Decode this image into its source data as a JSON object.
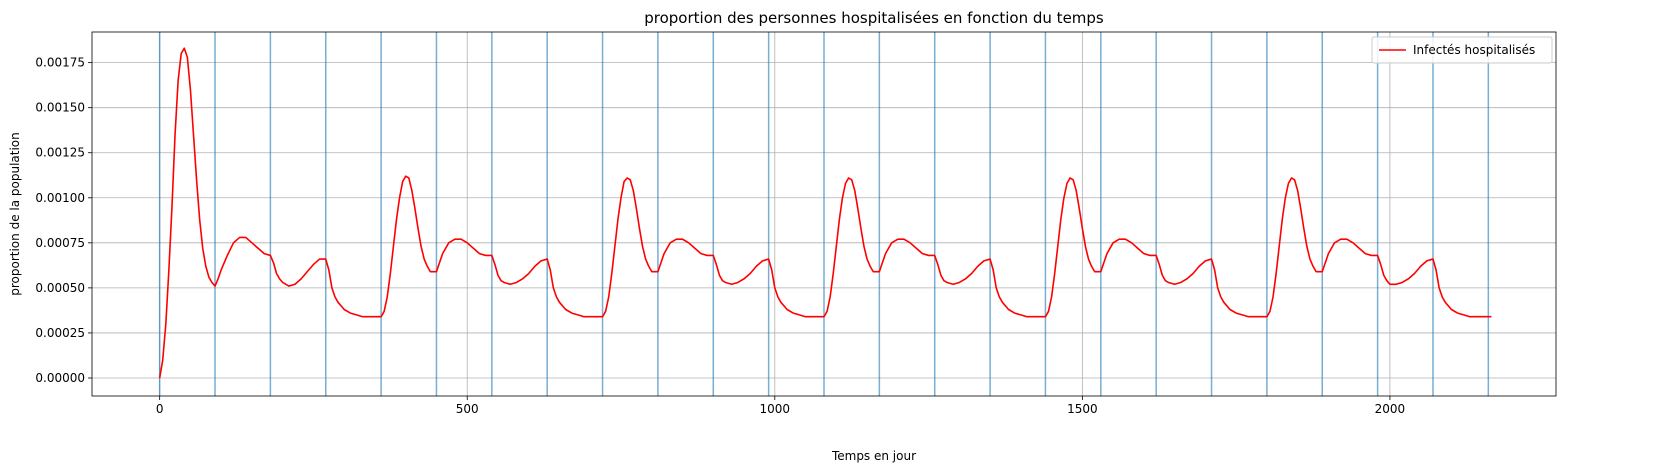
{
  "chart_data": {
    "type": "line",
    "title": "proportion des personnes hospitalisées en fonction du temps",
    "xlabel": "Temps en jour",
    "ylabel": "proportion de la population",
    "xlim": [
      -110,
      2270
    ],
    "ylim": [
      -0.0001,
      0.00192
    ],
    "x_ticks": [
      0,
      500,
      1000,
      1500,
      2000
    ],
    "x_tick_labels": [
      "0",
      "500",
      "1000",
      "1500",
      "2000"
    ],
    "y_ticks": [
      0,
      0.00025,
      0.0005,
      0.00075,
      0.001,
      0.00125,
      0.0015,
      0.00175
    ],
    "y_tick_labels": [
      "0.00000",
      "0.00025",
      "0.00050",
      "0.00075",
      "0.00100",
      "0.00125",
      "0.00150",
      "0.00175"
    ],
    "grid": true,
    "legend_position": "upper right",
    "vertical_markers": [
      0,
      90,
      180,
      270,
      360,
      450,
      540,
      630,
      720,
      810,
      900,
      990,
      1080,
      1170,
      1260,
      1350,
      1440,
      1530,
      1620,
      1710,
      1800,
      1890,
      1980,
      2070,
      2160
    ],
    "series": [
      {
        "name": "Infectés hospitalisés",
        "color": "#ff0000",
        "x": [
          0,
          5,
          10,
          15,
          20,
          25,
          30,
          35,
          40,
          45,
          50,
          55,
          60,
          65,
          70,
          75,
          80,
          85,
          90,
          95,
          100,
          110,
          120,
          130,
          140,
          150,
          160,
          170,
          180,
          185,
          190,
          195,
          200,
          210,
          220,
          230,
          240,
          250,
          260,
          270,
          275,
          280,
          285,
          290,
          300,
          310,
          320,
          330,
          340,
          350,
          360,
          365,
          370,
          375,
          380,
          385,
          390,
          395,
          400,
          405,
          410,
          415,
          420,
          425,
          430,
          435,
          440,
          450,
          455,
          460,
          470,
          480,
          490,
          500,
          510,
          520,
          530,
          540,
          545,
          550,
          555,
          560,
          570,
          580,
          590,
          600,
          610,
          620,
          630,
          635,
          640,
          645,
          650,
          660,
          670,
          680,
          690,
          700,
          710,
          720,
          725,
          730,
          735,
          740,
          745,
          750,
          755,
          760,
          765,
          770,
          775,
          780,
          785,
          790,
          795,
          800,
          810,
          815,
          820,
          830,
          840,
          850,
          860,
          870,
          880,
          890,
          900,
          905,
          910,
          915,
          920,
          930,
          940,
          950,
          960,
          970,
          980,
          990,
          995,
          1000,
          1005,
          1010,
          1020,
          1030,
          1040,
          1050,
          1060,
          1070,
          1080,
          1085,
          1090,
          1095,
          1100,
          1105,
          1110,
          1115,
          1120,
          1125,
          1130,
          1135,
          1140,
          1145,
          1150,
          1155,
          1160,
          1170,
          1175,
          1180,
          1190,
          1200,
          1210,
          1220,
          1230,
          1240,
          1250,
          1260,
          1265,
          1270,
          1275,
          1280,
          1290,
          1300,
          1310,
          1320,
          1330,
          1340,
          1350,
          1355,
          1360,
          1365,
          1370,
          1380,
          1390,
          1400,
          1410,
          1420,
          1430,
          1440,
          1445,
          1450,
          1455,
          1460,
          1465,
          1470,
          1475,
          1480,
          1485,
          1490,
          1495,
          1500,
          1505,
          1510,
          1515,
          1520,
          1530,
          1535,
          1540,
          1550,
          1560,
          1570,
          1580,
          1590,
          1600,
          1610,
          1620,
          1625,
          1630,
          1635,
          1640,
          1650,
          1660,
          1670,
          1680,
          1690,
          1700,
          1710,
          1715,
          1720,
          1725,
          1730,
          1740,
          1750,
          1760,
          1770,
          1780,
          1790,
          1800,
          1805,
          1810,
          1815,
          1820,
          1825,
          1830,
          1835,
          1840,
          1845,
          1850,
          1855,
          1860,
          1865,
          1870,
          1875,
          1880,
          1890,
          1895,
          1900,
          1910,
          1920,
          1930,
          1940,
          1950,
          1960,
          1970,
          1980,
          1985,
          1990,
          1995,
          2000,
          2010,
          2020,
          2030,
          2040,
          2050,
          2060,
          2070,
          2075,
          2080,
          2085,
          2090,
          2100,
          2110,
          2120,
          2130,
          2140,
          2150,
          2160,
          2165
        ],
        "y": [
          0.0,
          0.0001,
          0.0003,
          0.0006,
          0.00095,
          0.00135,
          0.00165,
          0.0018,
          0.00183,
          0.00178,
          0.0016,
          0.00135,
          0.0011,
          0.00088,
          0.00072,
          0.00062,
          0.00056,
          0.00053,
          0.00051,
          0.00055,
          0.0006,
          0.00068,
          0.00075,
          0.00078,
          0.00078,
          0.00075,
          0.00072,
          0.00069,
          0.00068,
          0.00064,
          0.00058,
          0.00055,
          0.00053,
          0.00051,
          0.00052,
          0.00055,
          0.00059,
          0.00063,
          0.00066,
          0.00066,
          0.0006,
          0.0005,
          0.00045,
          0.00042,
          0.00038,
          0.00036,
          0.00035,
          0.00034,
          0.00034,
          0.00034,
          0.00034,
          0.00037,
          0.00045,
          0.00058,
          0.00073,
          0.00088,
          0.001,
          0.00109,
          0.00112,
          0.00111,
          0.00104,
          0.00094,
          0.00083,
          0.00073,
          0.00066,
          0.00062,
          0.00059,
          0.00059,
          0.00064,
          0.00069,
          0.00075,
          0.00077,
          0.00077,
          0.00075,
          0.00072,
          0.00069,
          0.00068,
          0.00068,
          0.00063,
          0.00057,
          0.00054,
          0.00053,
          0.00052,
          0.00053,
          0.00055,
          0.00058,
          0.00062,
          0.00065,
          0.00066,
          0.0006,
          0.0005,
          0.00045,
          0.00042,
          0.00038,
          0.00036,
          0.00035,
          0.00034,
          0.00034,
          0.00034,
          0.00034,
          0.00037,
          0.00045,
          0.00058,
          0.00073,
          0.00088,
          0.001,
          0.00109,
          0.00111,
          0.0011,
          0.00104,
          0.00094,
          0.00083,
          0.00073,
          0.00066,
          0.00062,
          0.00059,
          0.00059,
          0.00064,
          0.00069,
          0.00075,
          0.00077,
          0.00077,
          0.00075,
          0.00072,
          0.00069,
          0.00068,
          0.00068,
          0.00063,
          0.00057,
          0.00054,
          0.00053,
          0.00052,
          0.00053,
          0.00055,
          0.00058,
          0.00062,
          0.00065,
          0.00066,
          0.0006,
          0.0005,
          0.00045,
          0.00042,
          0.00038,
          0.00036,
          0.00035,
          0.00034,
          0.00034,
          0.00034,
          0.00034,
          0.00037,
          0.00045,
          0.00058,
          0.00073,
          0.00088,
          0.001,
          0.00108,
          0.00111,
          0.0011,
          0.00104,
          0.00094,
          0.00083,
          0.00073,
          0.00066,
          0.00062,
          0.00059,
          0.00059,
          0.00064,
          0.00069,
          0.00075,
          0.00077,
          0.00077,
          0.00075,
          0.00072,
          0.00069,
          0.00068,
          0.00068,
          0.00063,
          0.00057,
          0.00054,
          0.00053,
          0.00052,
          0.00053,
          0.00055,
          0.00058,
          0.00062,
          0.00065,
          0.00066,
          0.0006,
          0.0005,
          0.00045,
          0.00042,
          0.00038,
          0.00036,
          0.00035,
          0.00034,
          0.00034,
          0.00034,
          0.00034,
          0.00037,
          0.00045,
          0.00058,
          0.00073,
          0.00088,
          0.001,
          0.00108,
          0.00111,
          0.0011,
          0.00104,
          0.00094,
          0.00083,
          0.00073,
          0.00066,
          0.00062,
          0.00059,
          0.00059,
          0.00064,
          0.00069,
          0.00075,
          0.00077,
          0.00077,
          0.00075,
          0.00072,
          0.00069,
          0.00068,
          0.00068,
          0.00063,
          0.00057,
          0.00054,
          0.00053,
          0.00052,
          0.00053,
          0.00055,
          0.00058,
          0.00062,
          0.00065,
          0.00066,
          0.0006,
          0.0005,
          0.00045,
          0.00042,
          0.00038,
          0.00036,
          0.00035,
          0.00034,
          0.00034,
          0.00034,
          0.00034,
          0.00037,
          0.00045,
          0.00058,
          0.00073,
          0.00088,
          0.001,
          0.00108,
          0.00111,
          0.0011,
          0.00104,
          0.00094,
          0.00083,
          0.00073,
          0.00066,
          0.00062,
          0.00059,
          0.00059,
          0.00064,
          0.00069,
          0.00075,
          0.00077,
          0.00077,
          0.00075,
          0.00072,
          0.00069,
          0.00068,
          0.00068,
          0.00063,
          0.00057,
          0.00054,
          0.00052,
          0.00052,
          0.00053,
          0.00055,
          0.00058,
          0.00062,
          0.00065,
          0.00066,
          0.0006,
          0.0005,
          0.00045,
          0.00042,
          0.00038,
          0.00036,
          0.00035,
          0.00034,
          0.00034,
          0.00034,
          0.00034,
          0.00034
        ]
      }
    ]
  }
}
